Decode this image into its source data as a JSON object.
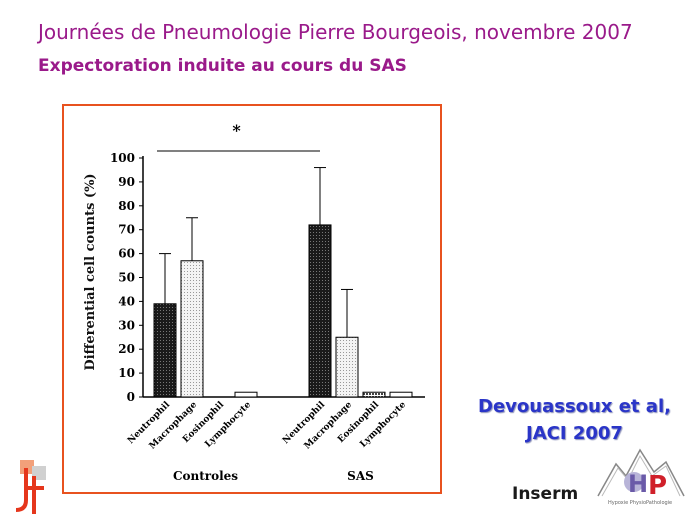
{
  "header": {
    "line1": "Journées de Pneumologie Pierre Bourgeois, novembre 2007",
    "line2": "Expectoration induite au cours du SAS"
  },
  "chart_data": {
    "type": "bar",
    "ylabel": "Differential cell counts (%)",
    "ylim": [
      0,
      100
    ],
    "yticks": [
      0,
      10,
      20,
      30,
      40,
      50,
      60,
      70,
      80,
      90,
      100
    ],
    "groups": [
      {
        "name": "Controles",
        "bars": [
          {
            "label": "Neutrophil",
            "value": 39,
            "error": 21
          },
          {
            "label": "Macrophage",
            "value": 57,
            "error": 18
          },
          {
            "label": "Eosinophil",
            "value": 0,
            "error": 0
          },
          {
            "label": "Lymphocyte",
            "value": 2,
            "error": 0
          }
        ]
      },
      {
        "name": "SAS",
        "bars": [
          {
            "label": "Neutrophil",
            "value": 72,
            "error": 24
          },
          {
            "label": "Macrophage",
            "value": 25,
            "error": 20
          },
          {
            "label": "Eosinophil",
            "value": 2,
            "error": 0
          },
          {
            "label": "Lymphocyte",
            "value": 2,
            "error": 0
          }
        ]
      }
    ],
    "significance": {
      "label": "*",
      "between": [
        "Controles Neutrophil",
        "SAS Neutrophil"
      ]
    },
    "colors": {
      "Neutrophil": "#222222",
      "Macrophage": "#e6e6e6",
      "Eosinophil": "#888888",
      "Lymphocyte": "#ffffff"
    }
  },
  "citation": {
    "line1": "Devouassoux et al,",
    "line2": "JACI 2007"
  },
  "logos": {
    "inserm": "Inserm",
    "hp_caption": "Hypoxie PhysioPathologie",
    "jf": "JF"
  }
}
